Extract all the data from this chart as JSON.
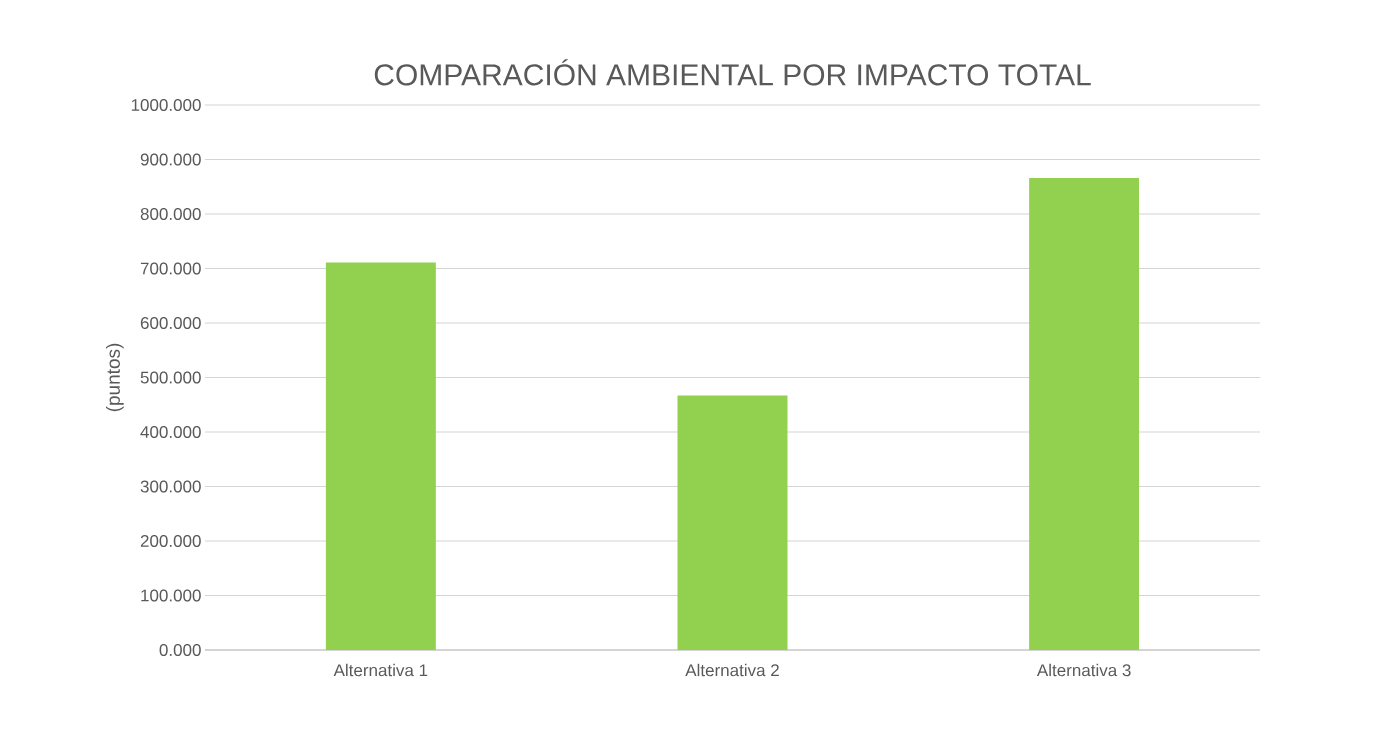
{
  "chart_data": {
    "type": "bar",
    "title": "COMPARACIÓN AMBIENTAL POR IMPACTO TOTAL",
    "ylabel": "(puntos)",
    "categories": [
      "Alternativa 1",
      "Alternativa 2",
      "Alternativa 3"
    ],
    "values": [
      711,
      467,
      866
    ],
    "color": "#92d050",
    "ylim": [
      0,
      1000
    ],
    "yticks": [
      {
        "value": 0,
        "label": "0.000"
      },
      {
        "value": 100,
        "label": "100.000"
      },
      {
        "value": 200,
        "label": "200.000"
      },
      {
        "value": 300,
        "label": "300.000"
      },
      {
        "value": 400,
        "label": "400.000"
      },
      {
        "value": 500,
        "label": "500.000"
      },
      {
        "value": 600,
        "label": "600.000"
      },
      {
        "value": 700,
        "label": "700.000"
      },
      {
        "value": 800,
        "label": "800.000"
      },
      {
        "value": 900,
        "label": "900.000"
      },
      {
        "value": 1000,
        "label": "1000.000"
      }
    ],
    "grid": "y"
  }
}
